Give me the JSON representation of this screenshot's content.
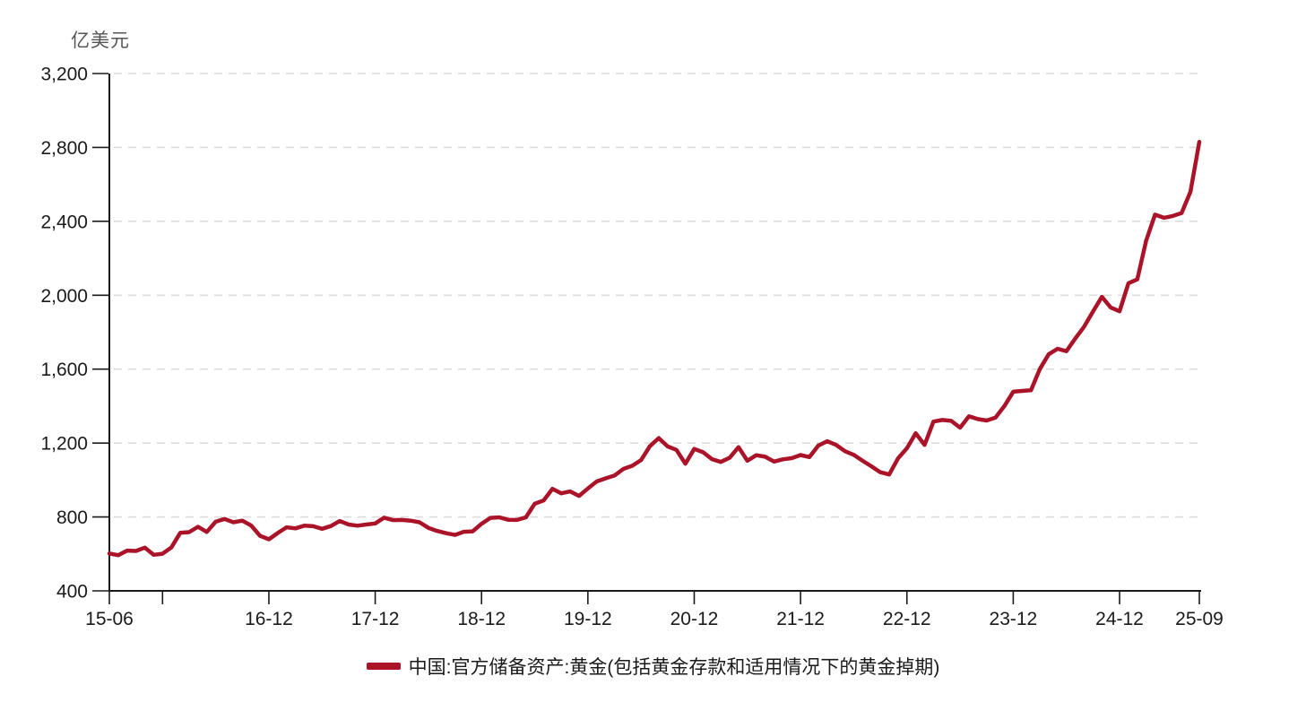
{
  "unit_label": "亿美元",
  "legend": {
    "position": "bottom-center",
    "items": [
      {
        "label": "中国:官方储备资产:黄金(包括黄金存款和适用情况下的黄金掉期)",
        "swatch": "thick-line",
        "color": "#AA1328"
      }
    ]
  },
  "axes": {
    "y": {
      "min": 400,
      "max": 3200,
      "step": 400,
      "tick_labels": [
        "400",
        "800",
        "1,200",
        "1,600",
        "2,000",
        "2,400",
        "2,800",
        "3,200"
      ],
      "gridlines": "dashed-horizontal"
    },
    "x": {
      "ticks": [
        {
          "label": "15-06",
          "ym": "2015-06"
        },
        {
          "label": "16-12",
          "ym": "2016-12"
        },
        {
          "label": "17-12",
          "ym": "2017-12"
        },
        {
          "label": "18-12",
          "ym": "2018-12"
        },
        {
          "label": "19-12",
          "ym": "2019-12"
        },
        {
          "label": "20-12",
          "ym": "2020-12"
        },
        {
          "label": "21-12",
          "ym": "2021-12"
        },
        {
          "label": "22-12",
          "ym": "2022-12"
        },
        {
          "label": "23-12",
          "ym": "2023-12"
        },
        {
          "label": "24-12",
          "ym": "2024-12"
        },
        {
          "label": "25-09",
          "ym": "2025-09"
        }
      ],
      "minor_ticks": [
        {
          "ym": "2015-12"
        }
      ]
    }
  },
  "chart_data": {
    "type": "line",
    "title": "",
    "ylabel": "亿美元",
    "xlabel": "",
    "ylim": [
      400,
      3200
    ],
    "grid": "horizontal-dashed",
    "legend_position": "bottom-center",
    "frequency": "monthly",
    "x_start": "2015-06",
    "x_end": "2025-09",
    "series": [
      {
        "name": "中国:官方储备资产:黄金(包括黄金存款和适用情况下的黄金掉期)",
        "color": "#AA1328",
        "values": [
          602,
          593,
          618,
          616,
          634,
          595,
          601,
          635,
          714,
          718,
          747,
          719,
          774,
          789,
          771,
          780,
          754,
          698,
          679,
          713,
          744,
          738,
          753,
          750,
          736,
          751,
          778,
          759,
          753,
          759,
          765,
          796,
          783,
          784,
          780,
          771,
          741,
          724,
          712,
          703,
          720,
          722,
          763,
          795,
          798,
          785,
          784,
          798,
          871,
          889,
          952,
          928,
          938,
          914,
          954,
          992,
          1009,
          1024,
          1060,
          1077,
          1108,
          1183,
          1227,
          1182,
          1163,
          1088,
          1168,
          1150,
          1113,
          1098,
          1120,
          1178,
          1104,
          1134,
          1126,
          1100,
          1112,
          1118,
          1135,
          1124,
          1186,
          1210,
          1190,
          1156,
          1136,
          1104,
          1074,
          1042,
          1030,
          1117,
          1172,
          1253,
          1190,
          1316,
          1325,
          1320,
          1283,
          1345,
          1330,
          1322,
          1338,
          1400,
          1478,
          1482,
          1486,
          1600,
          1680,
          1710,
          1697,
          1766,
          1830,
          1912,
          1991,
          1934,
          1913,
          2065,
          2086,
          2296,
          2436,
          2419,
          2429,
          2445,
          2560,
          2830
        ]
      }
    ]
  },
  "colors": {
    "background": "#FFFFFF",
    "line": "#AA1328",
    "grid": "#DCDCDC",
    "axis": "#1A1A1A",
    "tick_text": "#1A1A1A",
    "unit_text": "#555555"
  }
}
